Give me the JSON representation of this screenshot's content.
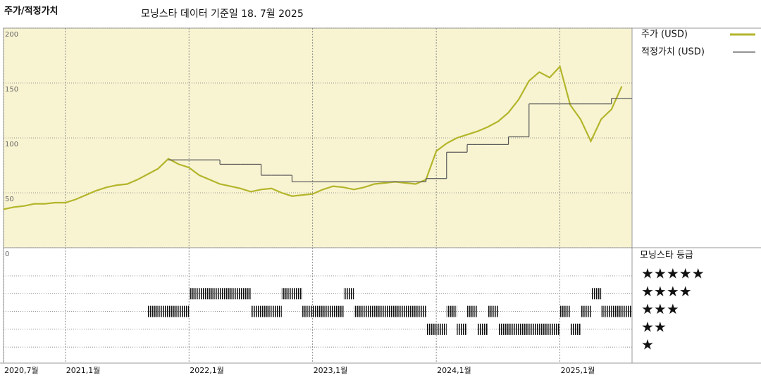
{
  "chart_data": {
    "type": "line",
    "title": "주가/적정가치",
    "subtitle": "모닝스타 데이터 기준일 18. 7월 2025",
    "background": "#f8f4d2",
    "x": [
      "2020-07",
      "2020-08",
      "2020-09",
      "2020-10",
      "2020-11",
      "2020-12",
      "2021-01",
      "2021-02",
      "2021-03",
      "2021-04",
      "2021-05",
      "2021-06",
      "2021-07",
      "2021-08",
      "2021-09",
      "2021-10",
      "2021-11",
      "2021-12",
      "2022-01",
      "2022-02",
      "2022-03",
      "2022-04",
      "2022-05",
      "2022-06",
      "2022-07",
      "2022-08",
      "2022-09",
      "2022-10",
      "2022-11",
      "2022-12",
      "2023-01",
      "2023-02",
      "2023-03",
      "2023-04",
      "2023-05",
      "2023-06",
      "2023-07",
      "2023-08",
      "2023-09",
      "2023-10",
      "2023-11",
      "2023-12",
      "2024-01",
      "2024-02",
      "2024-03",
      "2024-04",
      "2024-05",
      "2024-06",
      "2024-07",
      "2024-08",
      "2024-09",
      "2024-10",
      "2024-11",
      "2024-12",
      "2025-01",
      "2025-02",
      "2025-03",
      "2025-04",
      "2025-05",
      "2025-06",
      "2025-07"
    ],
    "xlim": [
      "2020-07",
      "2025-08"
    ],
    "xticks": [
      {
        "value": "2020-07",
        "label": "2020,7월"
      },
      {
        "value": "2021-01",
        "label": "2021,1월"
      },
      {
        "value": "2022-01",
        "label": "2022,1월"
      },
      {
        "value": "2023-01",
        "label": "2023,1월"
      },
      {
        "value": "2024-01",
        "label": "2024,1월"
      },
      {
        "value": "2025-01",
        "label": "2025,1월"
      }
    ],
    "ylim": [
      0,
      200
    ],
    "yticks": [
      0,
      50,
      100,
      150,
      200
    ],
    "series": [
      {
        "name": "주가 (USD)",
        "color": "#b3b52a",
        "values": [
          35,
          37,
          38,
          40,
          40,
          41,
          41,
          44,
          48,
          52,
          55,
          57,
          58,
          62,
          67,
          72,
          81,
          76,
          73,
          66,
          62,
          58,
          56,
          54,
          51,
          53,
          54,
          50,
          47,
          48,
          49,
          53,
          56,
          55,
          53,
          55,
          58,
          59,
          60,
          59,
          58,
          62,
          88,
          95,
          100,
          103,
          106,
          110,
          115,
          123,
          135,
          152,
          160,
          155,
          165,
          130,
          117,
          97,
          117,
          126,
          147
        ]
      },
      {
        "name": "적정가치 (USD)",
        "color": "#555555",
        "step": true,
        "values": [
          null,
          null,
          null,
          null,
          null,
          null,
          null,
          null,
          null,
          null,
          null,
          null,
          null,
          null,
          null,
          null,
          80,
          80,
          80,
          80,
          80,
          76,
          76,
          76,
          76,
          66,
          66,
          66,
          60,
          60,
          60,
          60,
          60,
          60,
          60,
          60,
          60,
          60,
          60,
          60,
          60,
          63,
          63,
          87,
          87,
          94,
          94,
          94,
          94,
          101,
          101,
          131,
          131,
          131,
          131,
          131,
          131,
          131,
          131,
          136,
          136
        ]
      }
    ],
    "rating": {
      "name": "모닝스타 등급",
      "color": "#111111",
      "labels": [
        "★★★★★",
        "★★★★",
        "★★★",
        "★★",
        "★"
      ],
      "values": [
        null,
        null,
        null,
        null,
        null,
        null,
        null,
        null,
        null,
        null,
        null,
        null,
        null,
        null,
        3,
        3,
        3,
        3,
        4,
        4,
        4,
        4,
        4,
        4,
        3,
        3,
        3,
        4,
        4,
        3,
        3,
        3,
        3,
        4,
        3,
        3,
        3,
        3,
        3,
        3,
        3,
        2,
        2,
        3,
        2,
        3,
        2,
        3,
        2,
        2,
        2,
        2,
        2,
        2,
        3,
        2,
        3,
        4,
        3,
        3,
        3
      ]
    }
  }
}
